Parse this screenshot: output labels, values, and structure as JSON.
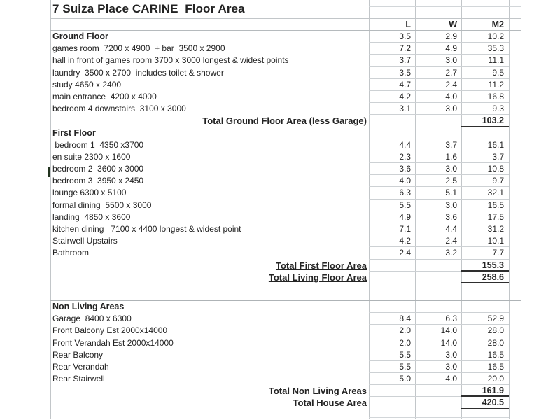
{
  "title": "7 Suiza Place CARINE  Floor Area",
  "columns": {
    "length": "L",
    "width": "W",
    "area": "M2"
  },
  "colors": {
    "background": "#ffffff",
    "text": "#232323",
    "gridline": "#c2c6c9",
    "total_rule": "#2e2e2e"
  },
  "table": {
    "rows": [
      {
        "type": "section",
        "label": "Ground Floor",
        "l": "3.5",
        "w": "2.9",
        "m2": "10.2"
      },
      {
        "type": "data",
        "label": "games room  7200 x 4900  + bar  3500 x 2900",
        "l": "7.2",
        "w": "4.9",
        "m2": "35.3"
      },
      {
        "type": "data",
        "label": "hall in front of games room 3700 x 3000 longest & widest points",
        "l": "3.7",
        "w": "3.0",
        "m2": "11.1"
      },
      {
        "type": "data",
        "label": "laundry  3500 x 2700  includes toilet & shower",
        "l": "3.5",
        "w": "2.7",
        "m2": "9.5"
      },
      {
        "type": "data",
        "label": "study 4650 x 2400",
        "l": "4.7",
        "w": "2.4",
        "m2": "11.2"
      },
      {
        "type": "data",
        "label": "main entrance  4200 x 4000",
        "l": "4.2",
        "w": "4.0",
        "m2": "16.8"
      },
      {
        "type": "data",
        "label": "bedroom 4 downstairs  3100 x 3000",
        "l": "3.1",
        "w": "3.0",
        "m2": "9.3"
      },
      {
        "type": "total",
        "label": "Total Ground Floor Area (less Garage)",
        "l": "",
        "w": "",
        "m2": "103.2"
      },
      {
        "type": "section",
        "label": "First Floor",
        "l": "",
        "w": "",
        "m2": ""
      },
      {
        "type": "data",
        "label": " bedroom 1  4350 x3700",
        "l": "4.4",
        "w": "3.7",
        "m2": "16.1"
      },
      {
        "type": "data",
        "label": "en suite 2300 x 1600",
        "l": "2.3",
        "w": "1.6",
        "m2": "3.7"
      },
      {
        "type": "data",
        "label": "bedroom 2  3600 x 3000",
        "l": "3.6",
        "w": "3.0",
        "m2": "10.8"
      },
      {
        "type": "data",
        "label": "bedroom 3  3950 x 2450",
        "l": "4.0",
        "w": "2.5",
        "m2": "9.7"
      },
      {
        "type": "data",
        "label": "lounge 6300 x 5100",
        "l": "6.3",
        "w": "5.1",
        "m2": "32.1"
      },
      {
        "type": "data",
        "label": "formal dining  5500 x 3000",
        "l": "5.5",
        "w": "3.0",
        "m2": "16.5"
      },
      {
        "type": "data",
        "label": "landing  4850 x 3600",
        "l": "4.9",
        "w": "3.6",
        "m2": "17.5"
      },
      {
        "type": "data",
        "label": "kitchen dining   7100 x 4400 longest & widest point",
        "l": "7.1",
        "w": "4.4",
        "m2": "31.2"
      },
      {
        "type": "data",
        "label": "Stairwell Upstairs",
        "l": "4.2",
        "w": "2.4",
        "m2": "10.1"
      },
      {
        "type": "data",
        "label": "Bathroom",
        "l": "2.4",
        "w": "3.2",
        "m2": "7.7"
      },
      {
        "type": "total",
        "label": "Total First Floor Area",
        "l": "",
        "w": "",
        "m2": "155.3"
      },
      {
        "type": "total",
        "label": "Total Living Floor Area",
        "l": "",
        "w": "",
        "m2": "258.6"
      },
      {
        "type": "spacer",
        "label": "",
        "l": "",
        "w": "",
        "m2": ""
      },
      {
        "type": "rule"
      },
      {
        "type": "section",
        "label": "Non Living Areas",
        "l": "",
        "w": "",
        "m2": ""
      },
      {
        "type": "data",
        "label": "Garage  8400 x 6300",
        "l": "8.4",
        "w": "6.3",
        "m2": "52.9"
      },
      {
        "type": "data",
        "label": "Front Balcony Est 2000x14000",
        "l": "2.0",
        "w": "14.0",
        "m2": "28.0"
      },
      {
        "type": "data",
        "label": "Front Verandah Est 2000x14000",
        "l": "2.0",
        "w": "14.0",
        "m2": "28.0"
      },
      {
        "type": "data",
        "label": "Rear Balcony",
        "l": "5.5",
        "w": "3.0",
        "m2": "16.5"
      },
      {
        "type": "data",
        "label": "Rear Verandah",
        "l": "5.5",
        "w": "3.0",
        "m2": "16.5"
      },
      {
        "type": "data",
        "label": "Rear Stairwell",
        "l": "5.0",
        "w": "4.0",
        "m2": "20.0"
      },
      {
        "type": "total",
        "label": "Total Non Living Areas",
        "l": "",
        "w": "",
        "m2": "161.9"
      },
      {
        "type": "total",
        "label": "Total House Area",
        "l": "",
        "w": "",
        "m2": "420.5"
      },
      {
        "type": "bottom",
        "label": "",
        "l": "",
        "w": "",
        "m2": ""
      }
    ]
  }
}
